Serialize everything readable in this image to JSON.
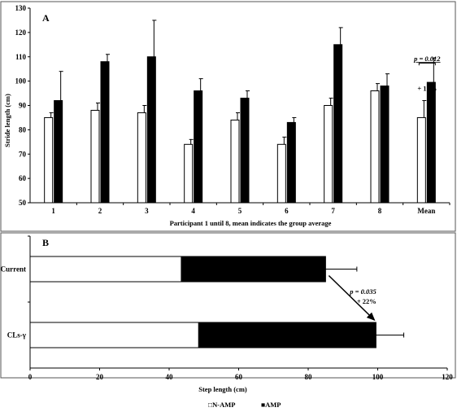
{
  "chart_data": [
    {
      "type": "bar",
      "panel_label": "A",
      "categories": [
        "1",
        "2",
        "3",
        "4",
        "5",
        "6",
        "7",
        "8",
        "Mean"
      ],
      "series": [
        {
          "name": "N-AMP",
          "color": "#ffffff",
          "values": [
            85,
            88,
            87,
            74,
            84,
            74,
            90,
            96,
            85
          ],
          "error": [
            2,
            3,
            3,
            2,
            3,
            3,
            3,
            3,
            7
          ]
        },
        {
          "name": "AMP",
          "color": "#000000",
          "values": [
            92,
            108,
            110,
            96,
            93,
            83,
            115,
            98,
            99.5
          ],
          "error": [
            12,
            3,
            15,
            5,
            3,
            2,
            7,
            5,
            10
          ]
        }
      ],
      "xlabel": "Participant  1 until 8, mean indicates the group average",
      "ylabel": "Stride length (cm)",
      "ylim": [
        50,
        130
      ],
      "yticks": [
        "50",
        "60",
        "70",
        "80",
        "90",
        "100",
        "110",
        "120",
        "130"
      ],
      "annotations": {
        "p_value": "p = 0.012",
        "change": "+ 17%"
      }
    },
    {
      "type": "bar",
      "orientation": "horizontal",
      "stacked": true,
      "panel_label": "B",
      "categories": [
        "Current",
        "CLs-γ"
      ],
      "series": [
        {
          "name": "N-AMP",
          "color": "#ffffff",
          "values": [
            43.5,
            48.5
          ]
        },
        {
          "name": "AMP",
          "color": "#000000",
          "values": [
            41.5,
            51
          ]
        }
      ],
      "error_total": [
        9,
        8
      ],
      "xlabel": "Step length (cm)",
      "xlim": [
        0,
        120
      ],
      "xticks": [
        "0",
        "20",
        "40",
        "60",
        "80",
        "100",
        "120"
      ],
      "annotations": {
        "p_value": "p = 0.035",
        "change": "+ 22%"
      }
    }
  ],
  "legend": [
    {
      "marker": "□",
      "label": "N-AMP"
    },
    {
      "marker": "■",
      "label": "AMP"
    }
  ]
}
